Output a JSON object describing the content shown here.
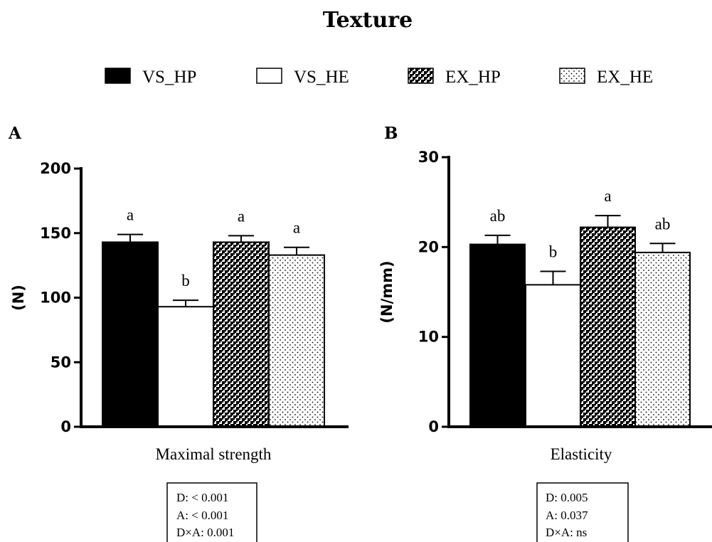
{
  "title": "Texture",
  "legend": [
    {
      "label": "VS_HP",
      "pattern": "solid-black"
    },
    {
      "label": "VS_HE",
      "pattern": "white"
    },
    {
      "label": "EX_HP",
      "pattern": "checker"
    },
    {
      "label": "EX_HE",
      "pattern": "dots"
    }
  ],
  "colors": {
    "ink": "#000000",
    "paper": "#ffffff"
  },
  "chart_data": [
    {
      "type": "bar",
      "panel": "A",
      "title": "",
      "xlabel": "Maximal strength",
      "ylabel": "(N)",
      "ylim": [
        0,
        200
      ],
      "yticks": [
        "0",
        "50",
        "100",
        "150",
        "200"
      ],
      "categories": [
        "VS_HP",
        "VS_HE",
        "EX_HP",
        "EX_HE"
      ],
      "values": [
        143,
        93,
        143,
        133
      ],
      "errors": [
        6,
        5,
        5,
        6
      ],
      "significance": [
        "a",
        "b",
        "a",
        "a"
      ],
      "stats": [
        "D: < 0.001",
        "A: < 0.001",
        "D×A: 0.001"
      ]
    },
    {
      "type": "bar",
      "panel": "B",
      "title": "",
      "xlabel": "Elasticity",
      "ylabel": "(N/mm)",
      "ylim": [
        0,
        30
      ],
      "yticks": [
        "0",
        "10",
        "20",
        "30"
      ],
      "categories": [
        "VS_HP",
        "VS_HE",
        "EX_HP",
        "EX_HE"
      ],
      "values": [
        20.3,
        15.8,
        22.2,
        19.4
      ],
      "errors": [
        1.0,
        1.5,
        1.3,
        1.0
      ],
      "significance": [
        "ab",
        "b",
        "a",
        "ab"
      ],
      "stats": [
        "D: 0.005",
        "A: 0.037",
        "D×A: ns"
      ]
    }
  ]
}
